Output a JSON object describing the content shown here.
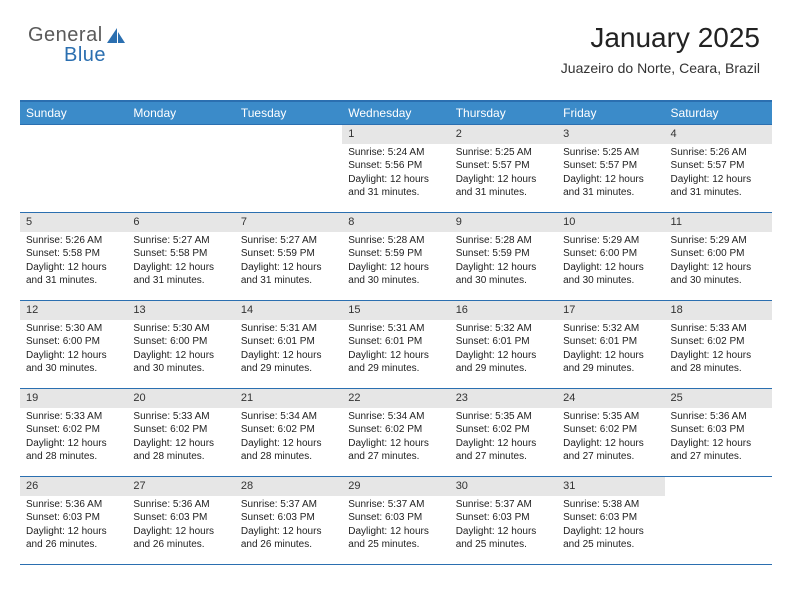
{
  "brand": {
    "general": "General",
    "blue": "Blue"
  },
  "header": {
    "title": "January 2025",
    "location": "Juazeiro do Norte, Ceara, Brazil"
  },
  "styling": {
    "page_bg": "#ffffff",
    "header_bar_bg": "#3b8bc9",
    "header_bar_text": "#ffffff",
    "border_color": "#2b6fb0",
    "daynum_bg": "#e6e6e6",
    "text_color": "#222222",
    "logo_gray": "#5a5a5a",
    "logo_blue": "#2b6fb0",
    "title_fontsize": 28,
    "location_fontsize": 14,
    "dayhead_fontsize": 12,
    "cell_fontsize": 10
  },
  "dayHeaders": [
    "Sunday",
    "Monday",
    "Tuesday",
    "Wednesday",
    "Thursday",
    "Friday",
    "Saturday"
  ],
  "weeks": [
    [
      null,
      null,
      null,
      {
        "n": "1",
        "sunrise": "5:24 AM",
        "sunset": "5:56 PM",
        "daylight": "12 hours and 31 minutes."
      },
      {
        "n": "2",
        "sunrise": "5:25 AM",
        "sunset": "5:57 PM",
        "daylight": "12 hours and 31 minutes."
      },
      {
        "n": "3",
        "sunrise": "5:25 AM",
        "sunset": "5:57 PM",
        "daylight": "12 hours and 31 minutes."
      },
      {
        "n": "4",
        "sunrise": "5:26 AM",
        "sunset": "5:57 PM",
        "daylight": "12 hours and 31 minutes."
      }
    ],
    [
      {
        "n": "5",
        "sunrise": "5:26 AM",
        "sunset": "5:58 PM",
        "daylight": "12 hours and 31 minutes."
      },
      {
        "n": "6",
        "sunrise": "5:27 AM",
        "sunset": "5:58 PM",
        "daylight": "12 hours and 31 minutes."
      },
      {
        "n": "7",
        "sunrise": "5:27 AM",
        "sunset": "5:59 PM",
        "daylight": "12 hours and 31 minutes."
      },
      {
        "n": "8",
        "sunrise": "5:28 AM",
        "sunset": "5:59 PM",
        "daylight": "12 hours and 30 minutes."
      },
      {
        "n": "9",
        "sunrise": "5:28 AM",
        "sunset": "5:59 PM",
        "daylight": "12 hours and 30 minutes."
      },
      {
        "n": "10",
        "sunrise": "5:29 AM",
        "sunset": "6:00 PM",
        "daylight": "12 hours and 30 minutes."
      },
      {
        "n": "11",
        "sunrise": "5:29 AM",
        "sunset": "6:00 PM",
        "daylight": "12 hours and 30 minutes."
      }
    ],
    [
      {
        "n": "12",
        "sunrise": "5:30 AM",
        "sunset": "6:00 PM",
        "daylight": "12 hours and 30 minutes."
      },
      {
        "n": "13",
        "sunrise": "5:30 AM",
        "sunset": "6:00 PM",
        "daylight": "12 hours and 30 minutes."
      },
      {
        "n": "14",
        "sunrise": "5:31 AM",
        "sunset": "6:01 PM",
        "daylight": "12 hours and 29 minutes."
      },
      {
        "n": "15",
        "sunrise": "5:31 AM",
        "sunset": "6:01 PM",
        "daylight": "12 hours and 29 minutes."
      },
      {
        "n": "16",
        "sunrise": "5:32 AM",
        "sunset": "6:01 PM",
        "daylight": "12 hours and 29 minutes."
      },
      {
        "n": "17",
        "sunrise": "5:32 AM",
        "sunset": "6:01 PM",
        "daylight": "12 hours and 29 minutes."
      },
      {
        "n": "18",
        "sunrise": "5:33 AM",
        "sunset": "6:02 PM",
        "daylight": "12 hours and 28 minutes."
      }
    ],
    [
      {
        "n": "19",
        "sunrise": "5:33 AM",
        "sunset": "6:02 PM",
        "daylight": "12 hours and 28 minutes."
      },
      {
        "n": "20",
        "sunrise": "5:33 AM",
        "sunset": "6:02 PM",
        "daylight": "12 hours and 28 minutes."
      },
      {
        "n": "21",
        "sunrise": "5:34 AM",
        "sunset": "6:02 PM",
        "daylight": "12 hours and 28 minutes."
      },
      {
        "n": "22",
        "sunrise": "5:34 AM",
        "sunset": "6:02 PM",
        "daylight": "12 hours and 27 minutes."
      },
      {
        "n": "23",
        "sunrise": "5:35 AM",
        "sunset": "6:02 PM",
        "daylight": "12 hours and 27 minutes."
      },
      {
        "n": "24",
        "sunrise": "5:35 AM",
        "sunset": "6:02 PM",
        "daylight": "12 hours and 27 minutes."
      },
      {
        "n": "25",
        "sunrise": "5:36 AM",
        "sunset": "6:03 PM",
        "daylight": "12 hours and 27 minutes."
      }
    ],
    [
      {
        "n": "26",
        "sunrise": "5:36 AM",
        "sunset": "6:03 PM",
        "daylight": "12 hours and 26 minutes."
      },
      {
        "n": "27",
        "sunrise": "5:36 AM",
        "sunset": "6:03 PM",
        "daylight": "12 hours and 26 minutes."
      },
      {
        "n": "28",
        "sunrise": "5:37 AM",
        "sunset": "6:03 PM",
        "daylight": "12 hours and 26 minutes."
      },
      {
        "n": "29",
        "sunrise": "5:37 AM",
        "sunset": "6:03 PM",
        "daylight": "12 hours and 25 minutes."
      },
      {
        "n": "30",
        "sunrise": "5:37 AM",
        "sunset": "6:03 PM",
        "daylight": "12 hours and 25 minutes."
      },
      {
        "n": "31",
        "sunrise": "5:38 AM",
        "sunset": "6:03 PM",
        "daylight": "12 hours and 25 minutes."
      },
      null
    ]
  ],
  "labels": {
    "sunrise": "Sunrise:",
    "sunset": "Sunset:",
    "daylight": "Daylight:"
  }
}
